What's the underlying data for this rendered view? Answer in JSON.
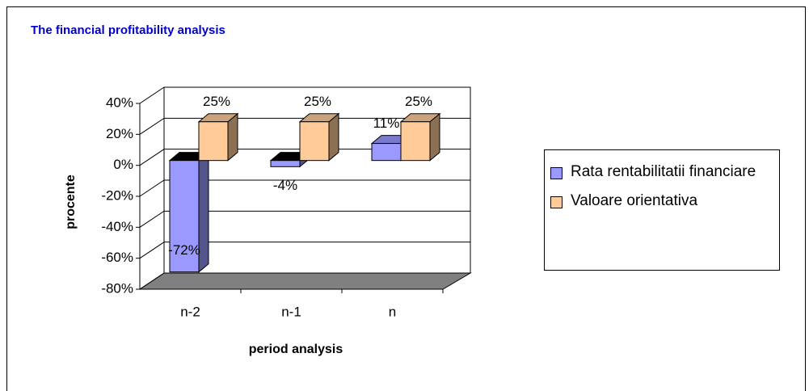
{
  "chart_data": {
    "type": "bar3d",
    "title": "The financial profitability analysis",
    "x_label": "period analysis",
    "y_label": "procente",
    "categories": [
      "n-2",
      "n-1",
      "n"
    ],
    "series": [
      {
        "name": "Rata rentabilitatii financiare",
        "color": "#9999ff",
        "values": [
          -72,
          -4,
          11
        ],
        "value_labels": [
          "-72%",
          "-4%",
          "11%"
        ]
      },
      {
        "name": "Valoare orientativa",
        "color": "#ffcc99",
        "values": [
          25,
          25,
          25
        ],
        "value_labels": [
          "25%",
          "25%",
          "25%"
        ]
      }
    ],
    "ylim": [
      -80,
      40
    ],
    "yticks": [
      {
        "value": -80,
        "label": "-80%"
      },
      {
        "value": -60,
        "label": "-60%"
      },
      {
        "value": -40,
        "label": "-40%"
      },
      {
        "value": -20,
        "label": "-20%"
      },
      {
        "value": 0,
        "label": "0%"
      },
      {
        "value": 20,
        "label": "20%"
      },
      {
        "value": 40,
        "label": "40%"
      }
    ],
    "grid": true,
    "legend": "right"
  }
}
